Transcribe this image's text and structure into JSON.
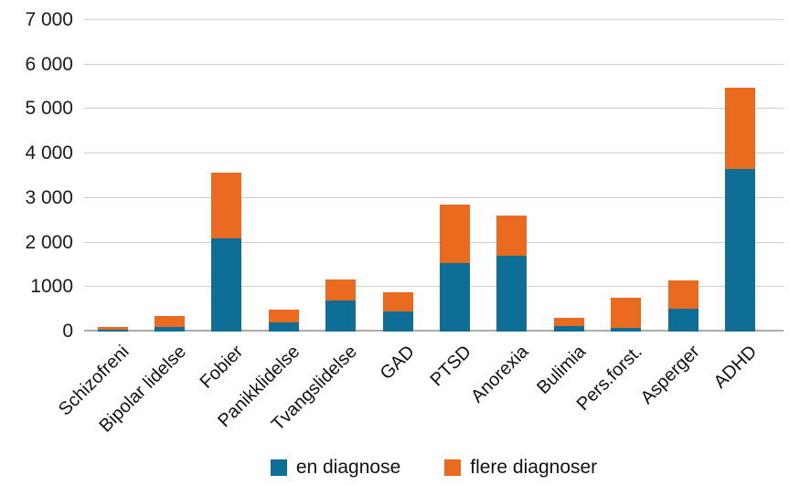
{
  "chart_data": {
    "type": "bar",
    "stacked": true,
    "title": "",
    "xlabel": "",
    "ylabel": "",
    "ylim": [
      0,
      7000
    ],
    "grid": true,
    "legend_position": "bottom",
    "categories": [
      "Schizofreni",
      "Bipolar lidelse",
      "Fobier",
      "Panikklidelse",
      "Tvangslidelse",
      "GAD",
      "PTSD",
      "Anorexia",
      "Bulimia",
      "Pers.forst.",
      "Asperger",
      "ADHD"
    ],
    "series": [
      {
        "name": "en diagnose",
        "color": "#0f6e96",
        "values": [
          40,
          100,
          2100,
          200,
          690,
          450,
          1540,
          1700,
          115,
          80,
          520,
          3650
        ]
      },
      {
        "name": "flere diagnoser",
        "color": "#ea6b1f",
        "values": [
          70,
          255,
          1480,
          290,
          480,
          440,
          1310,
          900,
          185,
          690,
          630,
          1840
        ]
      }
    ],
    "y_ticks": [
      {
        "label": "7 000",
        "value": 7000
      },
      {
        "label": "6 000",
        "value": 6000
      },
      {
        "label": "5 000",
        "value": 5000
      },
      {
        "label": "4 000",
        "value": 4000
      },
      {
        "label": "3 000",
        "value": 3000
      },
      {
        "label": "2 000",
        "value": 2000
      },
      {
        "label": "1000",
        "value": 1000
      },
      {
        "label": "0",
        "value": 0
      }
    ]
  },
  "colors": {
    "background": "#ffffff",
    "gridline": "#cdcdcd",
    "axis_line": "#ababab",
    "text": "#1a1a1a"
  }
}
